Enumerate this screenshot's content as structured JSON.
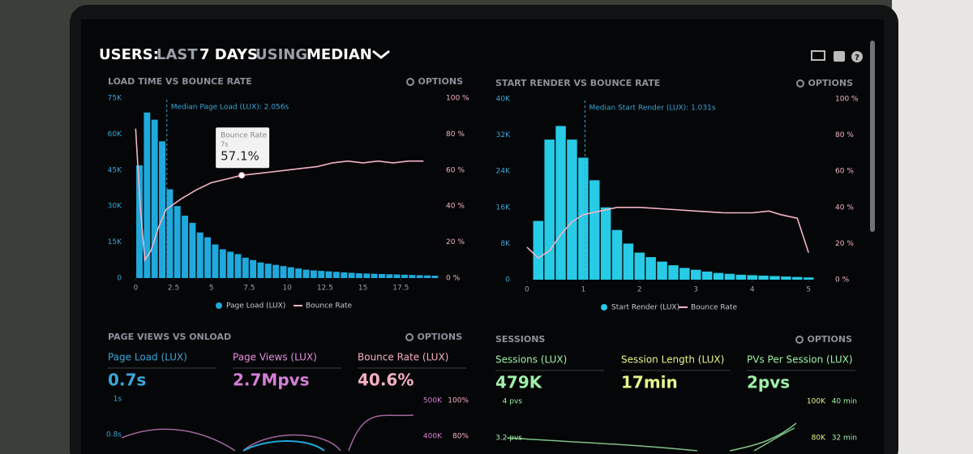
{
  "header": {
    "title_parts": [
      "USERS:",
      "LAST",
      "7 DAYS",
      "USING",
      "MEDIAN"
    ]
  },
  "panels": [
    {
      "title": "LOAD TIME VS BOUNCE RATE",
      "options": "OPTIONS",
      "chart": {
        "type": "histogram",
        "bins": [
          0,
          0.5,
          1,
          1.5,
          2,
          2.5,
          3,
          3.5,
          4,
          4.5,
          5,
          5.5,
          6,
          6.5,
          7,
          7.5,
          8,
          8.5,
          9,
          9.5,
          10,
          10.5,
          11,
          11.5,
          12,
          12.5,
          13,
          13.5,
          14,
          14.5,
          15,
          15.5,
          16,
          16.5,
          17,
          17.5,
          18,
          18.5,
          19,
          19.5,
          20
        ],
        "xlim": [
          -0.5,
          20
        ],
        "xticks": [
          0,
          2.5,
          5,
          7.5,
          10,
          12.5,
          15,
          17.5
        ],
        "ylim": [
          0,
          75000
        ],
        "yticks": [
          {
            "value": 0,
            "label": "0"
          },
          {
            "value": 15000,
            "label": "15K"
          },
          {
            "value": 30000,
            "label": "30K"
          },
          {
            "value": 45000,
            "label": "45K"
          },
          {
            "value": 60000,
            "label": "60K"
          },
          {
            "value": 75000,
            "label": "75K"
          }
        ],
        "y2lim": [
          0,
          100
        ],
        "y2ticks": [
          {
            "value": 0,
            "label": "0 %"
          },
          {
            "value": 20,
            "label": "20 %"
          },
          {
            "value": 40,
            "label": "40 %"
          },
          {
            "value": 60,
            "label": "60 %"
          },
          {
            "value": 80,
            "label": "80 %"
          },
          {
            "value": 100,
            "label": "100 %"
          }
        ],
        "median": 2.056,
        "median_label": "Median Page Load (LUX): 2.056s",
        "tooltip": {
          "title": "Bounce Rate",
          "x_label": "7s",
          "value_label": "57.1%",
          "x": 7,
          "value": 57.1
        },
        "series": [
          {
            "name": "Page Load (LUX)",
            "color": "#1fa9dc",
            "values": [
              47000,
              69000,
              66000,
              57000,
              37000,
              30000,
              26000,
              23000,
              19000,
              17000,
              14000,
              12000,
              11000,
              10000,
              8500,
              7500,
              6500,
              6000,
              5500,
              5000,
              4500,
              4000,
              3500,
              3200,
              3000,
              2800,
              2600,
              2400,
              2200,
              2000,
              1900,
              1800,
              1700,
              1600,
              1500,
              1400,
              1300,
              1200,
              1100,
              1000
            ]
          },
          {
            "name": "Bounce Rate",
            "color": "#f3b3c6",
            "axis": "y2",
            "x": [
              0,
              0.3,
              0.6,
              1,
              1.5,
              2,
              3,
              4,
              5,
              6,
              7,
              8,
              9,
              10,
              11,
              12,
              13,
              14,
              15,
              16,
              17,
              18,
              19
            ],
            "values": [
              83,
              40,
              10,
              15,
              28,
              38,
              44,
              49,
              53,
              55,
              57.1,
              58,
              59,
              60,
              61,
              62,
              64,
              65,
              64,
              65,
              64,
              65,
              65
            ]
          }
        ]
      }
    },
    {
      "title": "START RENDER VS BOUNCE RATE",
      "options": "OPTIONS",
      "chart": {
        "type": "histogram",
        "bins": [
          0.1,
          0.3,
          0.5,
          0.7,
          0.9,
          1.1,
          1.3,
          1.5,
          1.7,
          1.9,
          2.1,
          2.3,
          2.5,
          2.7,
          2.9,
          3.1,
          3.3,
          3.5,
          3.7,
          3.9,
          4.1,
          4.3,
          4.5,
          4.7,
          4.9,
          5.1
        ],
        "xlim": [
          -0.2,
          5.3
        ],
        "xticks": [
          0,
          1,
          2,
          3,
          4,
          5
        ],
        "ylim": [
          0,
          40000
        ],
        "yticks": [
          {
            "value": 0,
            "label": "0"
          },
          {
            "value": 8000,
            "label": "8K"
          },
          {
            "value": 16000,
            "label": "16K"
          },
          {
            "value": 24000,
            "label": "24K"
          },
          {
            "value": 32000,
            "label": "32K"
          },
          {
            "value": 40000,
            "label": "40K"
          }
        ],
        "y2lim": [
          0,
          100
        ],
        "y2ticks": [
          {
            "value": 0,
            "label": "0 %"
          },
          {
            "value": 20,
            "label": "20 %"
          },
          {
            "value": 40,
            "label": "40 %"
          },
          {
            "value": 60,
            "label": "60 %"
          },
          {
            "value": 80,
            "label": "80 %"
          },
          {
            "value": 100,
            "label": "100 %"
          }
        ],
        "median": 1.031,
        "median_label": "Median Start Render (LUX): 1.031s",
        "series": [
          {
            "name": "Start Render (LUX)",
            "color": "#27cbe6",
            "values": [
              13000,
              31000,
              34000,
              31000,
              27000,
              22000,
              16000,
              11000,
              8000,
              6000,
              5000,
              4000,
              3200,
              2600,
              2200,
              1800,
              1500,
              1300,
              1100,
              1000,
              900,
              800,
              700,
              600,
              500
            ]
          },
          {
            "name": "Bounce Rate",
            "color": "#f3b3c6",
            "axis": "y2",
            "x": [
              0,
              0.2,
              0.4,
              0.6,
              0.8,
              1,
              1.3,
              1.6,
              2,
              2.5,
              3,
              3.5,
              4,
              4.3,
              4.5,
              4.8,
              5
            ],
            "values": [
              18,
              12,
              16,
              25,
              32,
              36,
              38,
              40,
              40,
              39,
              38,
              37,
              37,
              38,
              36,
              34,
              15
            ]
          }
        ]
      }
    },
    {
      "title": "PAGE VIEWS VS ONLOAD",
      "options": "OPTIONS",
      "metrics": [
        {
          "label": "Page Load (LUX)",
          "value": "0.7s"
        },
        {
          "label": "Page Views (LUX)",
          "value": "2.7Mpvs"
        },
        {
          "label": "Bounce Rate (LUX)",
          "value": "40.6%"
        }
      ],
      "axis_labels": [
        "1s",
        "0.8s",
        "500K",
        "400K",
        "100%",
        "80%"
      ]
    },
    {
      "title": "SESSIONS",
      "options": "OPTIONS",
      "metrics": [
        {
          "label": "Sessions (LUX)",
          "value": "479K"
        },
        {
          "label": "Session Length (LUX)",
          "value": "17min"
        },
        {
          "label": "PVs Per Session (LUX)",
          "value": "2pvs"
        }
      ],
      "axis_labels": [
        "4 pvs",
        "3.2 pvs",
        "100K",
        "80K",
        "40 min",
        "32 min"
      ]
    }
  ]
}
